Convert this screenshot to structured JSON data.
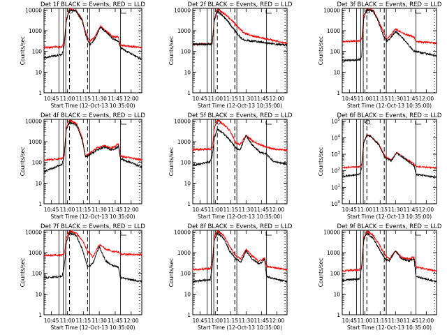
{
  "chart_data": {
    "type": "line",
    "layout": "3x3 grid",
    "x_label": "Start Time (12-Oct-13 10:35:00)",
    "y_label": "Counts/sec",
    "y_scale": "log",
    "y_range": [
      1,
      12000
    ],
    "x_range": [
      "10:38",
      "12:10"
    ],
    "x_ticks": [
      "10:45",
      "11:00",
      "11:15",
      "11:30",
      "11:45",
      "12:00"
    ],
    "series_colors": {
      "events": "#000000",
      "lld": "#ff0000"
    },
    "panels": [
      {
        "title": "Det 1f BLACK = Events, RED = LLD",
        "y_ticks": [
          "1",
          "10",
          "100",
          "1000",
          "10000"
        ],
        "events": {
          "x": [
            "10:38",
            "10:55",
            "10:57",
            "10:59",
            "11:02",
            "11:08",
            "11:14",
            "11:17",
            "11:21",
            "11:26",
            "11:31",
            "11:37",
            "11:43",
            "11:48",
            "11:50",
            "12:10"
          ],
          "y": [
            50,
            70,
            200,
            3000,
            10000,
            9000,
            3000,
            700,
            200,
            400,
            1500,
            800,
            400,
            300,
            150,
            40
          ]
        },
        "lld": {
          "x": [
            "10:38",
            "10:55",
            "10:57",
            "10:59",
            "11:02",
            "11:08",
            "11:14",
            "11:17",
            "11:21",
            "11:26",
            "11:31",
            "11:37",
            "11:43",
            "11:48",
            "11:50",
            "12:10"
          ],
          "y": [
            150,
            170,
            260,
            3500,
            11000,
            10000,
            3500,
            900,
            300,
            500,
            1700,
            900,
            500,
            500,
            200,
            150
          ]
        }
      },
      {
        "title": "Det 2f BLACK = Events, RED = LLD",
        "y_ticks": [
          "1",
          "10",
          "100",
          "1000",
          "10000"
        ],
        "events": {
          "x": [
            "10:38",
            "10:55",
            "10:57",
            "10:59",
            "11:02",
            "11:10",
            "11:18",
            "11:24",
            "11:28",
            "11:34",
            "11:42",
            "11:50",
            "12:10"
          ],
          "y": [
            220,
            220,
            240,
            3000,
            9000,
            4000,
            1200,
            500,
            350,
            320,
            300,
            250,
            200
          ]
        },
        "lld": {
          "x": [
            "10:38",
            "10:55",
            "10:57",
            "10:59",
            "11:02",
            "11:10",
            "11:18",
            "11:24",
            "11:28",
            "11:34",
            "11:42",
            "11:50",
            "12:10"
          ],
          "y": [
            220,
            230,
            260,
            3500,
            11000,
            6000,
            2500,
            1200,
            800,
            600,
            500,
            400,
            250
          ]
        }
      },
      {
        "title": "Det 3f BLACK = Events, RED = LLD",
        "y_ticks": [
          "1",
          "10",
          "100",
          "1000",
          "10000"
        ],
        "events": {
          "x": [
            "10:38",
            "10:55",
            "10:57",
            "10:59",
            "11:02",
            "11:08",
            "11:13",
            "11:18",
            "11:22",
            "11:26",
            "11:30",
            "11:36",
            "11:43",
            "11:48",
            "11:50",
            "12:10"
          ],
          "y": [
            35,
            40,
            60,
            4000,
            10000,
            9000,
            3000,
            600,
            300,
            500,
            900,
            500,
            200,
            100,
            100,
            60
          ]
        },
        "lld": {
          "x": [
            "10:38",
            "10:55",
            "10:57",
            "10:59",
            "11:02",
            "11:08",
            "11:13",
            "11:18",
            "11:22",
            "11:26",
            "11:30",
            "11:36",
            "11:43",
            "11:48",
            "11:50",
            "12:10"
          ],
          "y": [
            300,
            320,
            400,
            5000,
            11000,
            10000,
            3500,
            900,
            400,
            700,
            1200,
            800,
            600,
            500,
            300,
            250
          ]
        }
      },
      {
        "title": "Det 4f BLACK = Events, RED = LLD",
        "y_ticks": [
          "1",
          "10",
          "100",
          "1000",
          "10000"
        ],
        "events": {
          "x": [
            "10:38",
            "10:55",
            "10:57",
            "10:59",
            "11:02",
            "11:09",
            "11:14",
            "11:17",
            "11:22",
            "11:28",
            "11:35",
            "11:41",
            "11:45",
            "11:48",
            "11:50",
            "12:10"
          ],
          "y": [
            35,
            80,
            200,
            4000,
            9000,
            6000,
            1200,
            180,
            250,
            400,
            550,
            400,
            450,
            600,
            150,
            60
          ]
        },
        "lld": {
          "x": [
            "10:38",
            "10:55",
            "10:57",
            "10:59",
            "11:02",
            "11:09",
            "11:14",
            "11:17",
            "11:22",
            "11:28",
            "11:35",
            "11:41",
            "11:45",
            "11:48",
            "11:50",
            "12:10"
          ],
          "y": [
            130,
            150,
            250,
            4500,
            11000,
            7000,
            1500,
            200,
            300,
            500,
            650,
            500,
            600,
            800,
            200,
            130
          ]
        }
      },
      {
        "title": "Det 5f BLACK = Events, RED = LLD",
        "y_ticks": [
          "1",
          "10",
          "100",
          "1000",
          "10000"
        ],
        "events": {
          "x": [
            "10:38",
            "10:55",
            "10:57",
            "10:59",
            "11:02",
            "11:08",
            "11:14",
            "11:20",
            "11:24",
            "11:30",
            "11:36",
            "11:44",
            "11:50",
            "11:56",
            "12:10"
          ],
          "y": [
            70,
            110,
            200,
            1500,
            4000,
            2500,
            1200,
            500,
            400,
            2000,
            700,
            300,
            250,
            120,
            80
          ]
        },
        "lld": {
          "x": [
            "10:38",
            "10:55",
            "10:57",
            "10:59",
            "11:02",
            "11:08",
            "11:14",
            "11:20",
            "11:24",
            "11:30",
            "11:36",
            "11:44",
            "11:50",
            "11:56",
            "12:10"
          ],
          "y": [
            420,
            430,
            500,
            4500,
            11000,
            7000,
            3500,
            900,
            700,
            2000,
            1100,
            700,
            550,
            450,
            400
          ]
        }
      },
      {
        "title": "Det 6f BLACK = Events, RED = LLD",
        "y_ticks": [
          "10^0",
          "10^1",
          "10^2",
          "10^3",
          "10^4",
          "10^5"
        ],
        "y_range": [
          1,
          130000
        ],
        "events": {
          "x": [
            "10:38",
            "10:55",
            "10:57",
            "10:59",
            "11:02",
            "11:06",
            "11:14",
            "11:20",
            "11:26",
            "11:31",
            "11:38",
            "11:48",
            "11:50",
            "12:10"
          ],
          "y": [
            45,
            60,
            150,
            5000,
            14000,
            12000,
            3500,
            600,
            400,
            1200,
            600,
            200,
            60,
            40
          ]
        },
        "lld": {
          "x": [
            "10:38",
            "10:55",
            "10:57",
            "10:59",
            "11:02",
            "11:06",
            "11:14",
            "11:20",
            "11:26",
            "11:31",
            "11:38",
            "11:48",
            "11:50",
            "12:10"
          ],
          "y": [
            160,
            170,
            250,
            5500,
            14500,
            12500,
            3800,
            700,
            450,
            1300,
            650,
            250,
            180,
            150
          ]
        }
      },
      {
        "title": "Det 7f BLACK = Events, RED = LLD",
        "y_ticks": [
          "1",
          "10",
          "100",
          "1000",
          "10000"
        ],
        "events": {
          "x": [
            "10:38",
            "10:55",
            "10:57",
            "10:59",
            "11:02",
            "11:08",
            "11:14",
            "11:19",
            "11:24",
            "11:30",
            "11:36",
            "11:42",
            "11:48",
            "11:50",
            "12:10"
          ],
          "y": [
            60,
            70,
            200,
            3000,
            9000,
            7000,
            1500,
            200,
            300,
            2000,
            400,
            250,
            200,
            60,
            40
          ]
        },
        "lld": {
          "x": [
            "10:38",
            "10:55",
            "10:57",
            "10:59",
            "11:02",
            "11:08",
            "11:14",
            "11:19",
            "11:24",
            "11:30",
            "11:36",
            "11:42",
            "11:48",
            "11:50",
            "12:10"
          ],
          "y": [
            750,
            760,
            900,
            5000,
            11000,
            9000,
            4000,
            1200,
            600,
            2500,
            1500,
            1200,
            1100,
            850,
            800
          ]
        }
      },
      {
        "title": "Det 8f BLACK = Events, RED = LLD",
        "y_ticks": [
          "1",
          "10",
          "100",
          "1000",
          "10000"
        ],
        "events": {
          "x": [
            "10:38",
            "10:55",
            "10:57",
            "10:59",
            "11:02",
            "11:08",
            "11:14",
            "11:20",
            "11:25",
            "11:30",
            "11:36",
            "11:42",
            "11:46",
            "11:48",
            "11:50",
            "12:10"
          ],
          "y": [
            40,
            50,
            200,
            4000,
            9000,
            5000,
            1200,
            500,
            350,
            1200,
            500,
            300,
            350,
            500,
            70,
            40
          ]
        },
        "lld": {
          "x": [
            "10:38",
            "10:55",
            "10:57",
            "10:59",
            "11:02",
            "11:08",
            "11:14",
            "11:20",
            "11:25",
            "11:30",
            "11:36",
            "11:42",
            "11:46",
            "11:48",
            "11:50",
            "12:10"
          ],
          "y": [
            150,
            170,
            300,
            6000,
            11000,
            7000,
            2000,
            700,
            500,
            1400,
            700,
            400,
            450,
            600,
            220,
            150
          ]
        }
      },
      {
        "title": "Det 9f BLACK = Events, RED = LLD",
        "y_ticks": [
          "1",
          "10",
          "100",
          "1000",
          "10000"
        ],
        "events": {
          "x": [
            "10:38",
            "10:55",
            "10:57",
            "10:59",
            "11:02",
            "11:08",
            "11:14",
            "11:20",
            "11:24",
            "11:30",
            "11:36",
            "11:43",
            "11:48",
            "11:50",
            "12:10"
          ],
          "y": [
            45,
            55,
            200,
            4000,
            9000,
            5000,
            1500,
            500,
            400,
            1200,
            500,
            400,
            500,
            70,
            40
          ]
        },
        "lld": {
          "x": [
            "10:38",
            "10:55",
            "10:57",
            "10:59",
            "11:02",
            "11:08",
            "11:14",
            "11:20",
            "11:24",
            "11:30",
            "11:36",
            "11:43",
            "11:48",
            "11:50",
            "12:10"
          ],
          "y": [
            130,
            150,
            250,
            5000,
            11000,
            7000,
            2500,
            700,
            500,
            1200,
            600,
            500,
            600,
            200,
            130
          ]
        }
      }
    ]
  }
}
